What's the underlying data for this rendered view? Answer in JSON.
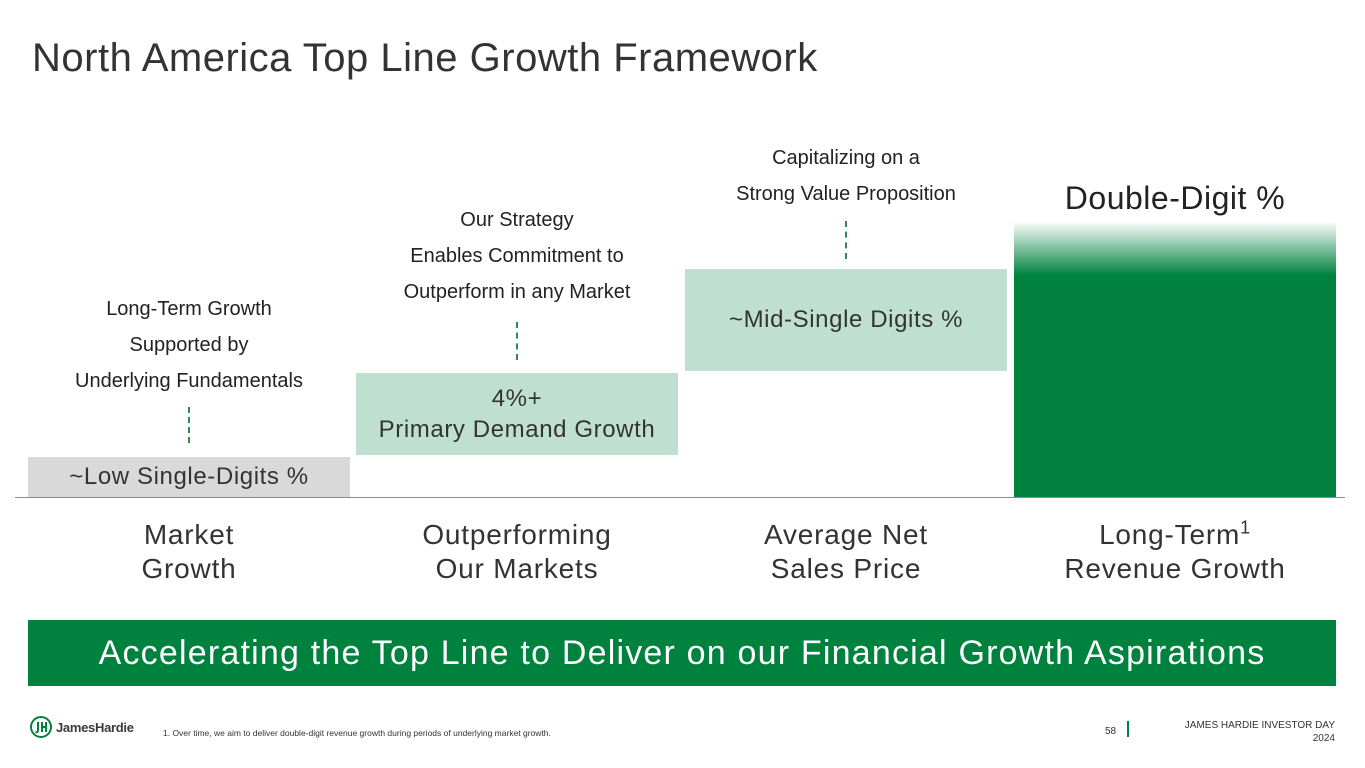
{
  "slide": {
    "title": "North America Top Line Growth Framework",
    "page_number": "58"
  },
  "columns": [
    {
      "description": [
        "Long-Term Growth",
        "Supported by",
        "Underlying Fundamentals"
      ],
      "bar_lines": [
        "~Low Single-Digits %"
      ],
      "category": [
        "Market",
        "Growth"
      ]
    },
    {
      "description": [
        "Our Strategy",
        "Enables Commitment to",
        "Outperform in any Market"
      ],
      "bar_lines": [
        "4%+",
        "Primary Demand Growth"
      ],
      "category": [
        "Outperforming",
        "Our Markets"
      ]
    },
    {
      "description": [
        "Capitalizing on a",
        "Strong Value Proposition"
      ],
      "bar_lines": [
        "~Mid-Single Digits %"
      ],
      "category": [
        "Average Net",
        "Sales Price"
      ]
    },
    {
      "bar_label": "Double-Digit %",
      "category_line1": "Long-Term",
      "category_sup": "1",
      "category_line2": "Revenue Growth"
    }
  ],
  "banner": {
    "text": "Accelerating the Top Line to Deliver on our Financial Growth Aspirations"
  },
  "footer": {
    "logo_text": "JamesHardie",
    "footnote": "1.  Over time, we aim to deliver double-digit revenue growth during periods of underlying market growth.",
    "event_line1": "JAMES HARDIE INVESTOR DAY",
    "event_line2": "2024"
  },
  "colors": {
    "brand_green": "#00823f",
    "light_green": "#bfe0d0",
    "light_gray": "#d9d9d9"
  },
  "icons": {
    "logo": "james-hardie-logo-icon"
  }
}
